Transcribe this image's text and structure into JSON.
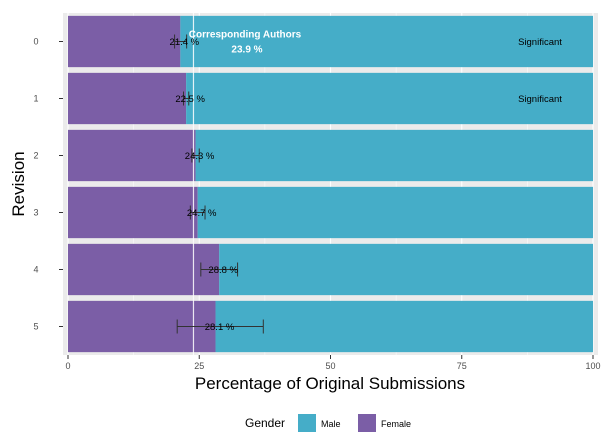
{
  "chart_data": {
    "type": "bar",
    "orientation": "horizontal",
    "stacked": true,
    "xlabel": "Percentage of Original Submissions",
    "ylabel": "Revision",
    "xlim": [
      0,
      100
    ],
    "xticks": [
      "0",
      "25",
      "50",
      "75",
      "100"
    ],
    "categories": [
      "0",
      "1",
      "2",
      "3",
      "4",
      "5"
    ],
    "series": [
      {
        "name": "Female",
        "color": "#7b5ea6",
        "values": [
          21.4,
          22.5,
          24.3,
          24.7,
          28.8,
          28.1
        ]
      },
      {
        "name": "Male",
        "color": "#45adc8",
        "values": [
          78.6,
          77.5,
          75.7,
          75.3,
          71.2,
          71.9
        ]
      }
    ],
    "error_bars": [
      {
        "low": 20.3,
        "high": 22.6
      },
      {
        "low": 22.0,
        "high": 23.0
      },
      {
        "low": 23.6,
        "high": 25.0
      },
      {
        "low": 23.3,
        "high": 26.1
      },
      {
        "low": 25.3,
        "high": 32.3
      },
      {
        "low": 20.8,
        "high": 37.2
      }
    ],
    "bar_labels": [
      "21.4 %",
      "22.5 %",
      "24.3 %",
      "24.7 %",
      "28.8 %",
      "28.1 %"
    ],
    "significance": [
      "Significant",
      "Significant",
      "",
      "",
      "",
      ""
    ],
    "reference_line": {
      "value": 23.9,
      "label_title": "Corresponding Authors",
      "label_value": "23.9 %"
    },
    "legend": {
      "title": "Gender",
      "position": "bottom",
      "entries": [
        {
          "name": "Male",
          "color": "#45adc8"
        },
        {
          "name": "Female",
          "color": "#7b5ea6"
        }
      ]
    },
    "grid": true,
    "panel_background": "#ebebeb"
  }
}
